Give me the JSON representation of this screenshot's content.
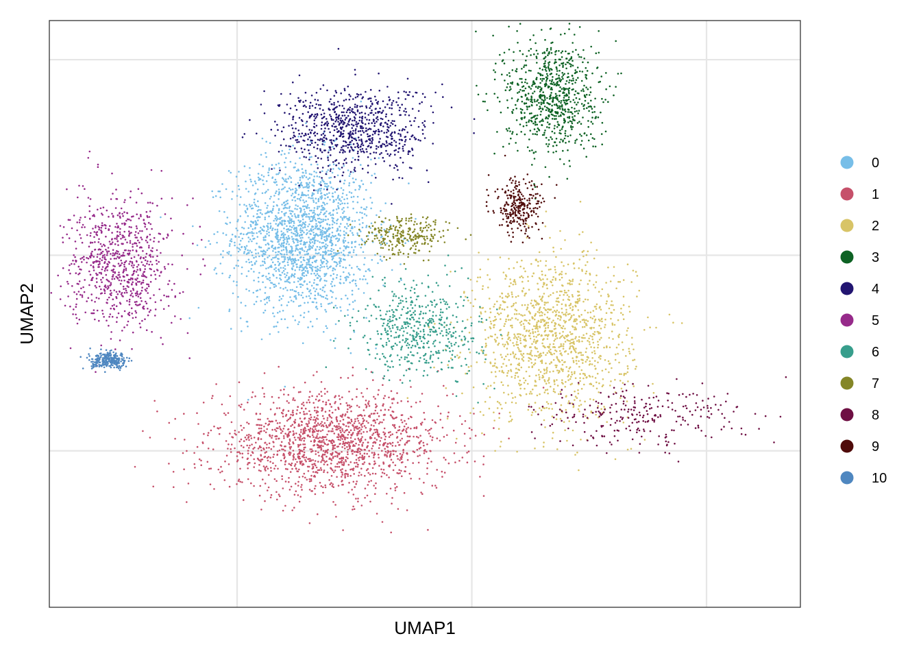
{
  "chart_data": {
    "type": "scatter",
    "xlabel": "UMAP1",
    "ylabel": "UMAP2",
    "xlim": [
      -4,
      12
    ],
    "ylim": [
      -4,
      11
    ],
    "grid": true,
    "legend_position": "right",
    "series": [
      {
        "name": "0",
        "color": "#77BEE8",
        "center": [
          1.4,
          5.5
        ],
        "spread": [
          1.5,
          2.0
        ],
        "weight": 7
      },
      {
        "name": "1",
        "color": "#C6506A",
        "center": [
          2.0,
          0.2
        ],
        "spread": [
          2.5,
          1.3
        ],
        "weight": 6
      },
      {
        "name": "2",
        "color": "#D8C467",
        "center": [
          6.7,
          2.9
        ],
        "spread": [
          1.7,
          2.1
        ],
        "weight": 5
      },
      {
        "name": "3",
        "color": "#0E6224",
        "center": [
          6.7,
          9.1
        ],
        "spread": [
          1.0,
          1.5
        ],
        "weight": 3
      },
      {
        "name": "4",
        "color": "#221571",
        "center": [
          2.5,
          8.2
        ],
        "spread": [
          1.6,
          1.1
        ],
        "weight": 3
      },
      {
        "name": "5",
        "color": "#962A8A",
        "center": [
          -2.5,
          4.8
        ],
        "spread": [
          1.1,
          1.7
        ],
        "weight": 3
      },
      {
        "name": "6",
        "color": "#379E8C",
        "center": [
          3.9,
          3.1
        ],
        "spread": [
          1.3,
          1.2
        ],
        "weight": 2
      },
      {
        "name": "7",
        "color": "#848627",
        "center": [
          3.6,
          5.5
        ],
        "spread": [
          0.9,
          0.5
        ],
        "weight": 1
      },
      {
        "name": "8",
        "color": "#6E0F43",
        "center": [
          8.5,
          0.9
        ],
        "spread": [
          2.3,
          0.8
        ],
        "weight": 1
      },
      {
        "name": "9",
        "color": "#4F0B0A",
        "center": [
          6.0,
          6.2
        ],
        "spread": [
          0.5,
          0.7
        ],
        "weight": 1
      },
      {
        "name": "10",
        "color": "#4F87C0",
        "center": [
          -2.7,
          2.3
        ],
        "spread": [
          0.4,
          0.2
        ],
        "weight": 1
      }
    ]
  }
}
